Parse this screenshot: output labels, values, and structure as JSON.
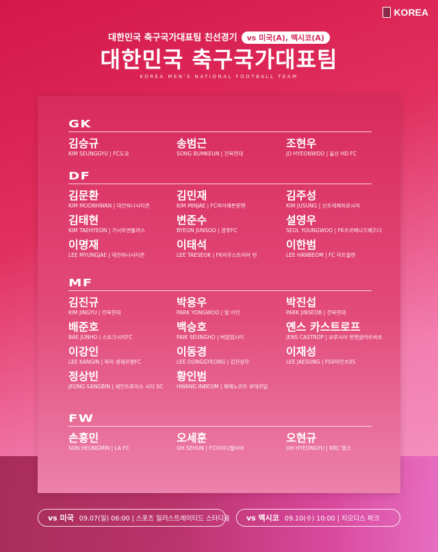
{
  "logo": {
    "text": "KOREA",
    "icon": "kfa-emblem-icon"
  },
  "header": {
    "subtitle": "대한민국 축구국가대표팀 친선경기",
    "opponents": "vs 미국(A), 멕시코(A)",
    "title": "대한민국 축구국가대표팀",
    "english": "KOREA MEN'S NATIONAL FOOTBALL TEAM"
  },
  "colors": {
    "primary": "#d82a5c",
    "accent": "#f59ac6"
  },
  "sections": [
    {
      "label": "GK",
      "players": [
        {
          "name": "김승규",
          "info": "KIM SEUNGGYU | FC도쿄"
        },
        {
          "name": "송범근",
          "info": "SONG BUMKEUN | 전북현대"
        },
        {
          "name": "조현우",
          "info": "JO HYEONWOO | 울산 HD FC"
        }
      ]
    },
    {
      "label": "DF",
      "players": [
        {
          "name": "김문환",
          "info": "KIM MOONHWAN | 대전하나시티즌"
        },
        {
          "name": "김민재",
          "info": "KIM MINJAE | FC바이에른뮌헨"
        },
        {
          "name": "김주성",
          "info": "KIM JUSUNG | 산프레체히로시마"
        },
        {
          "name": "김태현",
          "info": "KIM TAEHYEON | 가시마앤틀러스"
        },
        {
          "name": "변준수",
          "info": "BYEON JUNSOO | 광주FC"
        },
        {
          "name": "설영우",
          "info": "SEOL YOUNGWOO | FK츠르베나즈베즈다"
        },
        {
          "name": "이명재",
          "info": "LEE MYUNGJAE | 대전하나시티즌"
        },
        {
          "name": "이태석",
          "info": "LEE TAESEOK | FK아우스트리아 빈"
        },
        {
          "name": "이한범",
          "info": "LEE HANBEOM | FC 미트윌란"
        }
      ]
    },
    {
      "label": "MF",
      "players": [
        {
          "name": "김진규",
          "info": "KIM JINGYU | 전북현대"
        },
        {
          "name": "박용우",
          "info": "PARK YONGWOO | 알 아인"
        },
        {
          "name": "박진섭",
          "info": "PARK JINSEOB | 전북현대"
        },
        {
          "name": "배준호",
          "info": "BAE JUNHO | 스토크시티FC"
        },
        {
          "name": "백승호",
          "info": "PAIK SEUNGHO | 버밍엄시티"
        },
        {
          "name": "옌스 카스트로프",
          "info": "JENS CASTROP | 보루시아 묀헨글라트바흐"
        },
        {
          "name": "이강인",
          "info": "LEE KANGIN | 파리 생제르맹FC"
        },
        {
          "name": "이동경",
          "info": "LEE DONGGYEONG | 김천상무"
        },
        {
          "name": "이재성",
          "info": "LEE JAESUNG | FSV마인츠05"
        },
        {
          "name": "정상빈",
          "info": "JEONG SANGBIN | 세인트루이스 시티 SC"
        },
        {
          "name": "황인범",
          "info": "HWANG INBEOM | 페예노르트 로테르담"
        }
      ]
    },
    {
      "label": "FW",
      "players": [
        {
          "name": "손흥민",
          "info": "SON HEUNGMIN | LA FC"
        },
        {
          "name": "오세훈",
          "info": "OH SEHUN | FC마치다젤비아"
        },
        {
          "name": "오현규",
          "info": "OH HYEONGYU | KRC 헹크"
        }
      ]
    }
  ],
  "matches": [
    {
      "opponent": "vs 미국",
      "details": "09.07(일) 06:00 | 스포츠 일러스트레이티드 스타디움"
    },
    {
      "opponent": "vs 멕시코",
      "details": "09.10(수) 10:00 | 지오디스 파크"
    }
  ]
}
